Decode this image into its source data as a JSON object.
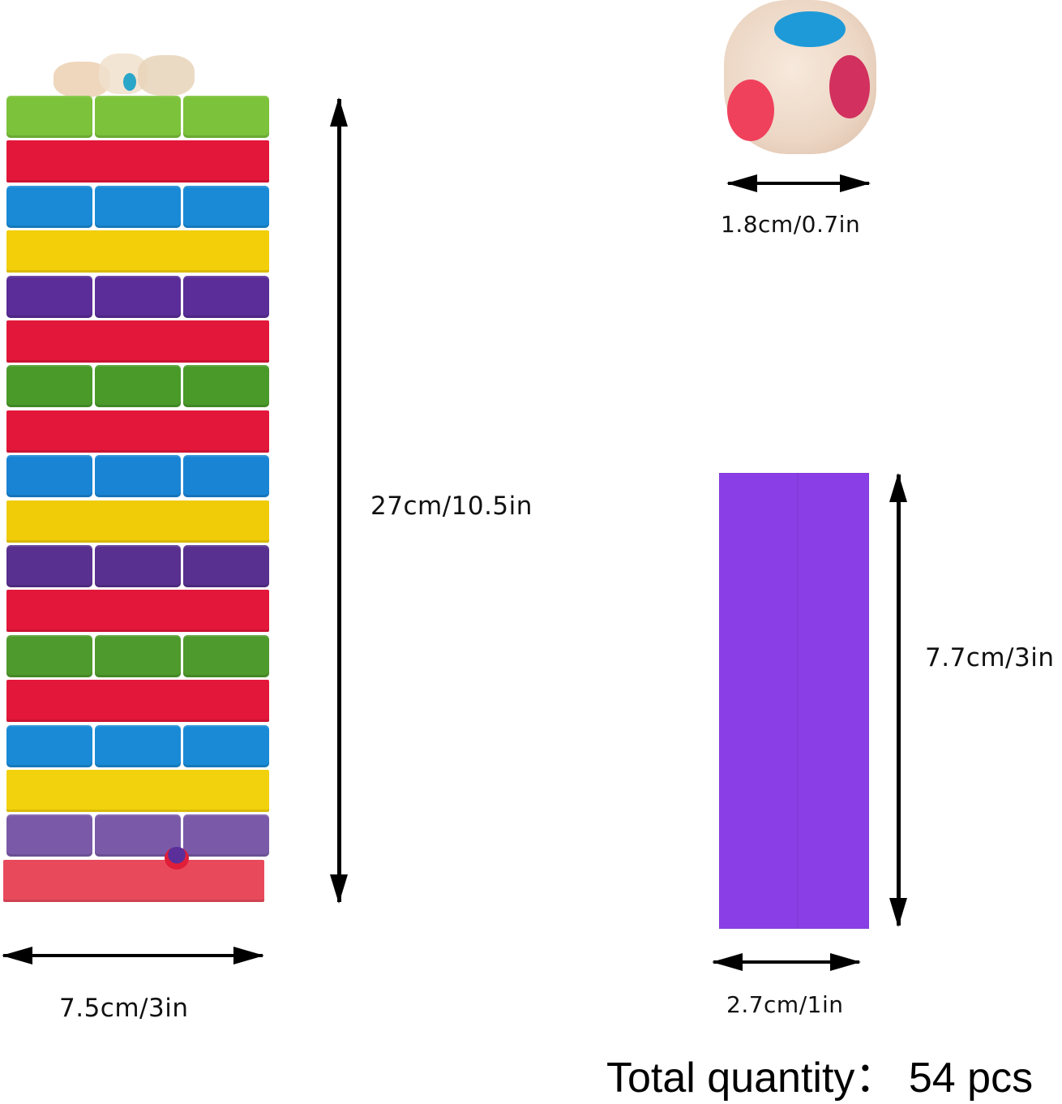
{
  "figure": {
    "type": "product-dimension-infographic",
    "tower": {
      "height_label": "27cm/10.5in",
      "width_label": "7.5cm/3in",
      "layers": [
        {
          "color": "#7cc23a",
          "pieces": 3
        },
        {
          "color": "#e3173a",
          "pieces": 1
        },
        {
          "color": "#1a8ad6",
          "pieces": 3
        },
        {
          "color": "#f2cf09",
          "pieces": 1
        },
        {
          "color": "#5a2d98",
          "pieces": 3
        },
        {
          "color": "#e3173a",
          "pieces": 1
        },
        {
          "color": "#4a9a2a",
          "pieces": 3
        },
        {
          "color": "#e3173a",
          "pieces": 1
        },
        {
          "color": "#1a84d4",
          "pieces": 3
        },
        {
          "color": "#f0cc08",
          "pieces": 1
        },
        {
          "color": "#58308f",
          "pieces": 3
        },
        {
          "color": "#e3173a",
          "pieces": 1
        },
        {
          "color": "#4f9a2c",
          "pieces": 3
        },
        {
          "color": "#e3173a",
          "pieces": 1
        },
        {
          "color": "#1a8ad6",
          "pieces": 3
        },
        {
          "color": "#f2d20c",
          "pieces": 1
        },
        {
          "color": "#7a5aa8",
          "pieces": 3
        },
        {
          "color": "#e84a5c",
          "pieces": 1
        }
      ]
    },
    "die": {
      "size_label": "1.8cm/0.7in",
      "pip_colors": [
        "#1e9ad8",
        "#f0415c",
        "#d2305e"
      ]
    },
    "block": {
      "height_label": "7.7cm/3in",
      "width_label": "2.7cm/1in",
      "color": "#8a3fe6"
    },
    "total_quantity": "Total quantity：  54 pcs"
  }
}
